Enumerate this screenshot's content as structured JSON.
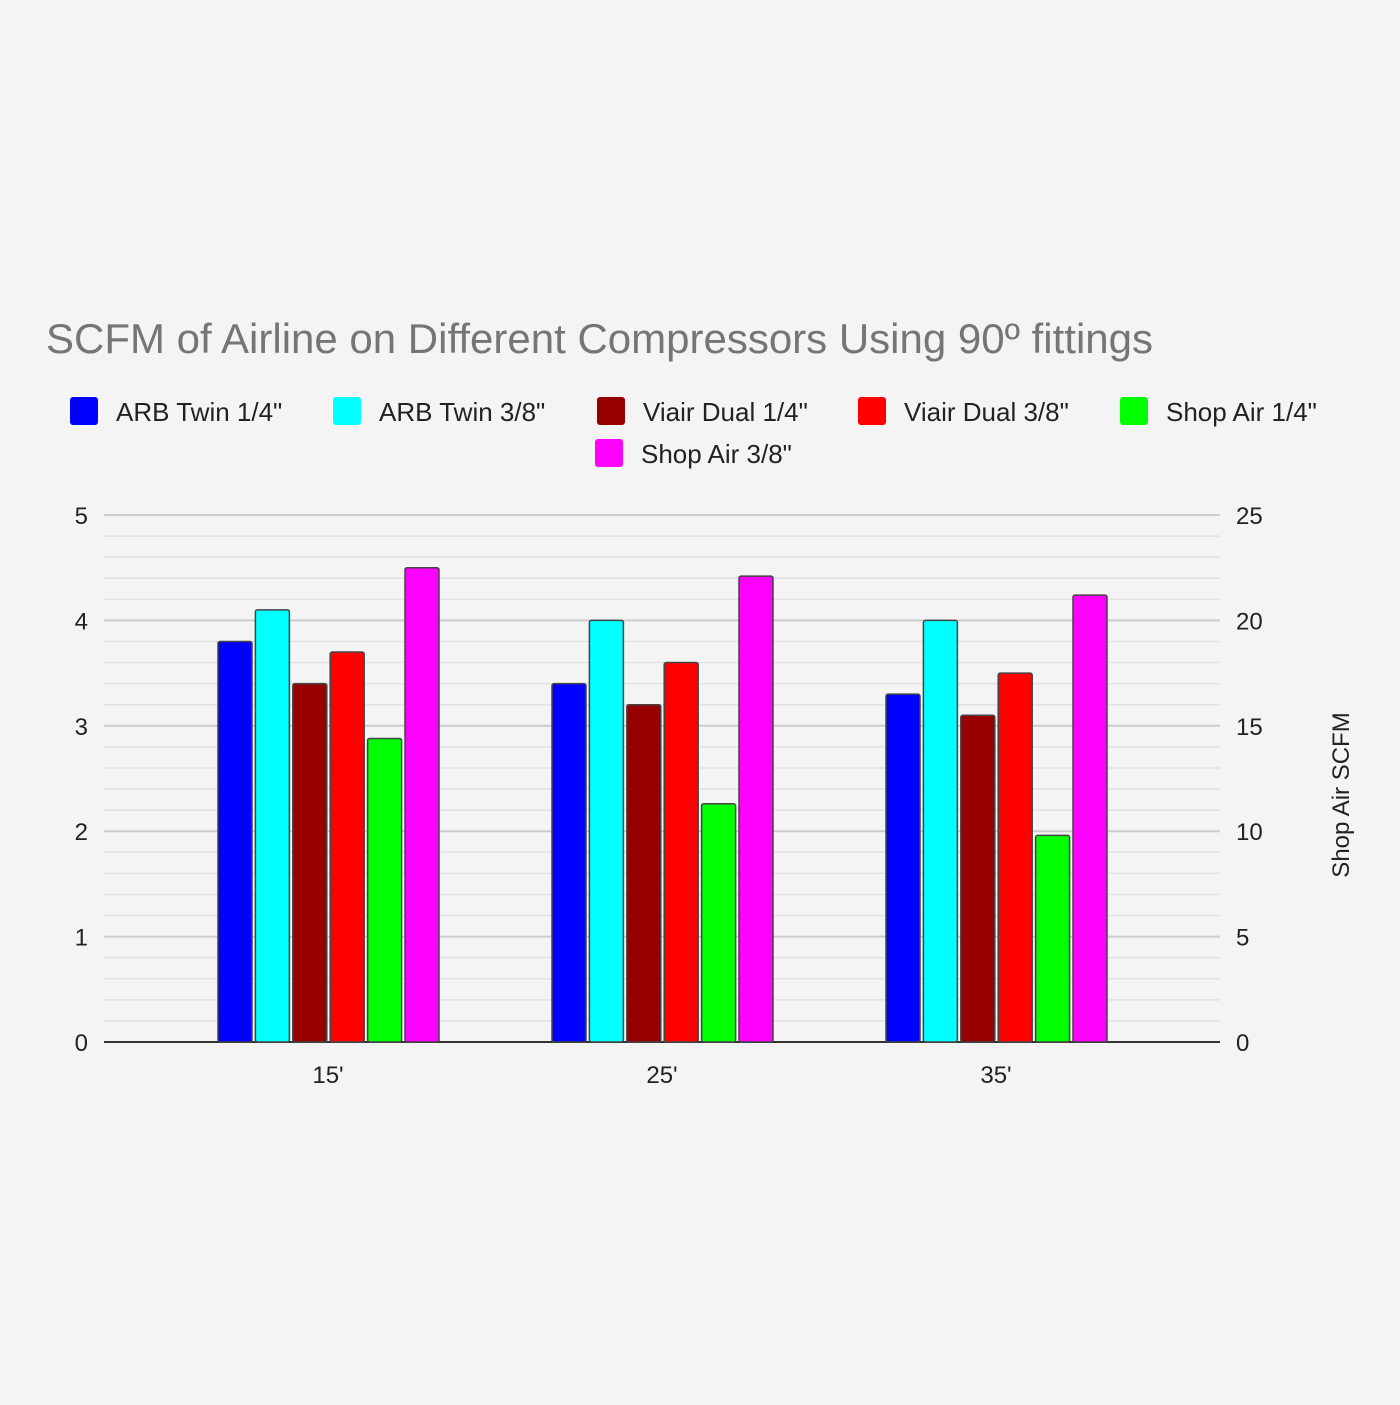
{
  "chart_data": {
    "type": "bar",
    "title": "SCFM of Airline on Different Compressors Using 90º fittings",
    "xlabel": "",
    "ylabel": "",
    "y2label": "Shop Air SCFM",
    "categories": [
      "15'",
      "25'",
      "35'"
    ],
    "ylim": [
      0,
      5
    ],
    "y2lim": [
      0,
      25
    ],
    "yticks": [
      "0",
      "1",
      "2",
      "3",
      "4",
      "5"
    ],
    "y2ticks": [
      "0",
      "5",
      "10",
      "15",
      "20",
      "25"
    ],
    "grid": true,
    "legend": "top",
    "series": [
      {
        "name": "ARB Twin 1/4\"",
        "color": "#0000ff",
        "axis": "left",
        "values": [
          3.8,
          3.4,
          3.3
        ]
      },
      {
        "name": "ARB Twin 3/8\"",
        "color": "#00ffff",
        "axis": "left",
        "values": [
          4.1,
          4.0,
          4.0
        ]
      },
      {
        "name": "Viair Dual 1/4\"",
        "color": "#980000",
        "axis": "left",
        "values": [
          3.4,
          3.2,
          3.1
        ]
      },
      {
        "name": "Viair Dual 3/8\"",
        "color": "#ff0000",
        "axis": "left",
        "values": [
          3.7,
          3.6,
          3.5
        ]
      },
      {
        "name": "Shop Air 1/4\"",
        "color": "#00ff00",
        "axis": "right",
        "values": [
          14.4,
          11.3,
          9.8
        ]
      },
      {
        "name": "Shop Air 3/8\"",
        "color": "#ff00ff",
        "axis": "right",
        "values": [
          22.5,
          22.1,
          21.2
        ]
      }
    ]
  }
}
